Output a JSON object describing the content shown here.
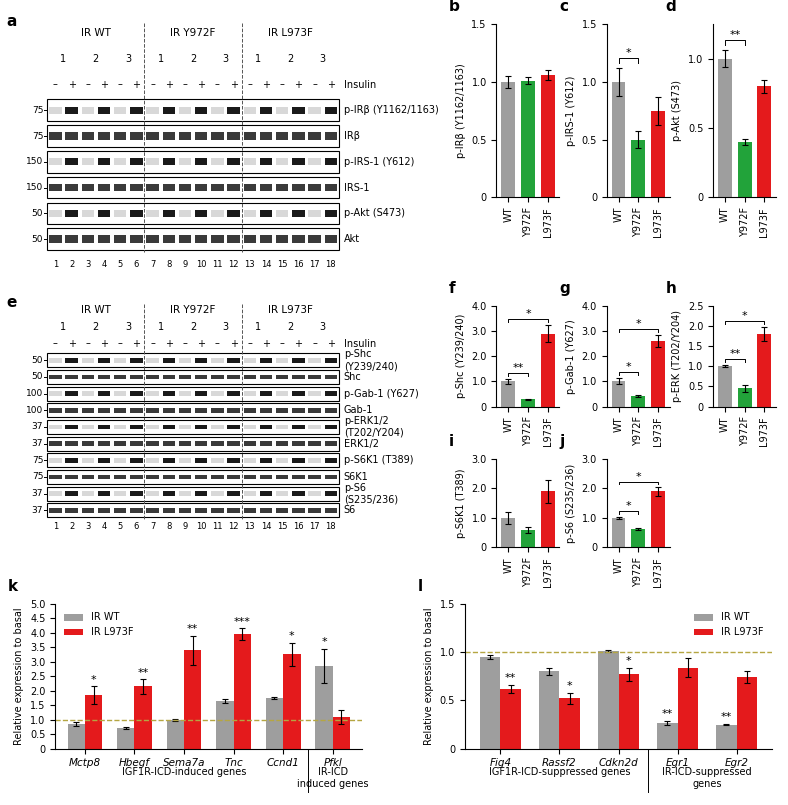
{
  "blots": [
    {
      "panel": "a",
      "groups": [
        "IR WT",
        "IR Y972F",
        "IR L973F"
      ],
      "replicates": [
        "1",
        "2",
        "3"
      ],
      "treatment_label": "Insulin",
      "treatment": [
        "–",
        "+"
      ],
      "lanes": [
        "1",
        "2",
        "3",
        "4",
        "5",
        "6",
        "7",
        "8",
        "9",
        "10",
        "11",
        "12",
        "13",
        "14",
        "15",
        "16",
        "17",
        "18"
      ],
      "rows": [
        {
          "label": "p-IRβ (Y1162/1163)",
          "mw": 75
        },
        {
          "label": "IRβ",
          "mw": 75
        },
        {
          "label": "p-IRS-1 (Y612)",
          "mw": 150
        },
        {
          "label": "IRS-1",
          "mw": 150
        },
        {
          "label": "p-Akt (S473)",
          "mw": 50
        },
        {
          "label": "Akt",
          "mw": 50
        }
      ]
    },
    {
      "panel": "e",
      "groups": [
        "IR WT",
        "IR Y972F",
        "IR L973F"
      ],
      "replicates": [
        "1",
        "2",
        "3"
      ],
      "treatment_label": "Insulin",
      "treatment": [
        "–",
        "+"
      ],
      "lanes": [
        "1",
        "2",
        "3",
        "4",
        "5",
        "6",
        "7",
        "8",
        "9",
        "10",
        "11",
        "12",
        "13",
        "14",
        "15",
        "16",
        "17",
        "18"
      ],
      "rows": [
        {
          "label": "p-Shc\n(Y239/240)",
          "mw": 50
        },
        {
          "label": "Shc",
          "mw": 50
        },
        {
          "label": "p-Gab-1 (Y627)",
          "mw": 100
        },
        {
          "label": "Gab-1",
          "mw": 100
        },
        {
          "label": "p-ERK1/2\n(T202/Y204)",
          "mw": 37
        },
        {
          "label": "ERK1/2",
          "mw": 37
        },
        {
          "label": "p-S6K1 (T389)",
          "mw": 75
        },
        {
          "label": "S6K1",
          "mw": 75
        },
        {
          "label": "p-S6\n(S235/236)",
          "mw": 37
        },
        {
          "label": "S6",
          "mw": 37
        }
      ]
    }
  ],
  "chart_data": [
    {
      "type": "bar",
      "panel": "b",
      "y_label": "p-IRβ (Y1162/1163)",
      "categories": [
        "WT",
        "Y972F",
        "L973F"
      ],
      "values": [
        1.0,
        1.01,
        1.06
      ],
      "errors": [
        0.05,
        0.03,
        0.04
      ],
      "colors": [
        "#9e9e9e",
        "#22a33a",
        "#e41a1c"
      ],
      "ylim": [
        0,
        1.5
      ],
      "yticks": [
        0,
        0.5,
        {
          "value": 1.0,
          "label": "1.0"
        },
        1.5
      ],
      "significance": []
    },
    {
      "type": "bar",
      "panel": "c",
      "y_label": "p-IRS-1 (Y612)",
      "categories": [
        "WT",
        "Y972F",
        "L973F"
      ],
      "values": [
        1.0,
        0.5,
        0.75
      ],
      "errors": [
        0.12,
        0.07,
        0.12
      ],
      "colors": [
        "#9e9e9e",
        "#22a33a",
        "#e41a1c"
      ],
      "ylim": [
        0,
        1.5
      ],
      "yticks": [
        0,
        0.5,
        {
          "value": 1.0,
          "label": "1.0"
        },
        1.5
      ],
      "significance": [
        {
          "from": "WT",
          "to": "Y972F",
          "text": "*"
        }
      ]
    },
    {
      "type": "bar",
      "panel": "d",
      "y_label": "p-Akt (S473)",
      "categories": [
        "WT",
        "Y972F",
        "L973F"
      ],
      "values": [
        1.0,
        0.4,
        0.8
      ],
      "errors": [
        0.06,
        0.02,
        0.05
      ],
      "colors": [
        "#9e9e9e",
        "#22a33a",
        "#e41a1c"
      ],
      "ylim": [
        0,
        1.25
      ],
      "yticks": [
        0,
        0.5,
        {
          "value": 1.0,
          "label": "1.0"
        }
      ],
      "significance": [
        {
          "from": "WT",
          "to": "Y972F",
          "text": "**"
        }
      ]
    },
    {
      "type": "bar",
      "panel": "f",
      "y_label": "p-Shc (Y239/240)",
      "categories": [
        "WT",
        "Y972F",
        "L973F"
      ],
      "values": [
        1.0,
        0.28,
        2.9
      ],
      "errors": [
        0.1,
        0.03,
        0.35
      ],
      "colors": [
        "#9e9e9e",
        "#22a33a",
        "#e41a1c"
      ],
      "ylim": [
        0,
        4.0
      ],
      "yticks": [
        0,
        {
          "value": 1.0,
          "label": "1.0"
        },
        {
          "value": 2.0,
          "label": "2.0"
        },
        {
          "value": 3.0,
          "label": "3.0"
        },
        {
          "value": 4.0,
          "label": "4.0"
        }
      ],
      "significance": [
        {
          "from": "WT",
          "to": "Y972F",
          "text": "**"
        },
        {
          "from": "WT",
          "to": "L973F",
          "text": "*"
        }
      ]
    },
    {
      "type": "bar",
      "panel": "g",
      "y_label": "p-Gab-1 (Y627)",
      "categories": [
        "WT",
        "Y972F",
        "L973F"
      ],
      "values": [
        1.0,
        0.42,
        2.6
      ],
      "errors": [
        0.12,
        0.03,
        0.25
      ],
      "colors": [
        "#9e9e9e",
        "#22a33a",
        "#e41a1c"
      ],
      "ylim": [
        0,
        4.0
      ],
      "yticks": [
        0,
        {
          "value": 1.0,
          "label": "1.0"
        },
        {
          "value": 2.0,
          "label": "2.0"
        },
        {
          "value": 3.0,
          "label": "3.0"
        },
        {
          "value": 4.0,
          "label": "4.0"
        }
      ],
      "significance": [
        {
          "from": "WT",
          "to": "Y972F",
          "text": "*"
        },
        {
          "from": "WT",
          "to": "L973F",
          "text": "*"
        }
      ]
    },
    {
      "type": "bar",
      "panel": "h",
      "y_label": "p-ERK (T202/Y204)",
      "categories": [
        "WT",
        "Y972F",
        "L973F"
      ],
      "values": [
        1.0,
        0.45,
        1.8
      ],
      "errors": [
        0.03,
        0.08,
        0.18
      ],
      "colors": [
        "#9e9e9e",
        "#22a33a",
        "#e41a1c"
      ],
      "ylim": [
        0,
        2.5
      ],
      "yticks": [
        0,
        0.5,
        {
          "value": 1.0,
          "label": "1.0"
        },
        1.5,
        {
          "value": 2.0,
          "label": "2.0"
        },
        2.5
      ],
      "significance": [
        {
          "from": "WT",
          "to": "Y972F",
          "text": "**"
        },
        {
          "from": "WT",
          "to": "L973F",
          "text": "*"
        }
      ]
    },
    {
      "type": "bar",
      "panel": "i",
      "y_label": "p-S6K1 (T389)",
      "categories": [
        "WT",
        "Y972F",
        "L973F"
      ],
      "values": [
        1.0,
        0.6,
        1.9
      ],
      "errors": [
        0.2,
        0.1,
        0.4
      ],
      "colors": [
        "#9e9e9e",
        "#22a33a",
        "#e41a1c"
      ],
      "ylim": [
        0,
        3.0
      ],
      "yticks": [
        0,
        {
          "value": 1.0,
          "label": "1.0"
        },
        {
          "value": 2.0,
          "label": "2.0"
        },
        {
          "value": 3.0,
          "label": "3.0"
        }
      ],
      "significance": []
    },
    {
      "type": "bar",
      "panel": "j",
      "y_label": "p-S6 (S235/236)",
      "categories": [
        "WT",
        "Y972F",
        "L973F"
      ],
      "values": [
        1.0,
        0.62,
        1.9
      ],
      "errors": [
        0.04,
        0.04,
        0.15
      ],
      "colors": [
        "#9e9e9e",
        "#22a33a",
        "#e41a1c"
      ],
      "ylim": [
        0,
        3.0
      ],
      "yticks": [
        0,
        {
          "value": 1.0,
          "label": "1.0"
        },
        {
          "value": 2.0,
          "label": "2.0"
        },
        {
          "value": 3.0,
          "label": "3.0"
        }
      ],
      "significance": [
        {
          "from": "WT",
          "to": "Y972F",
          "text": "*"
        },
        {
          "from": "WT",
          "to": "L973F",
          "text": "*"
        }
      ]
    },
    {
      "type": "bar",
      "panel": "k",
      "y_label": "Relative expression to basal",
      "categories": [
        "Mctp8",
        "Hbegf",
        "Sema7a",
        "Tnc",
        "Ccnd1",
        "Pfkl"
      ],
      "series": [
        {
          "name": "IR WT",
          "color": "#9e9e9e",
          "values": [
            0.85,
            0.7,
            0.98,
            1.65,
            1.75,
            2.85
          ],
          "errors": [
            0.07,
            0.03,
            0.03,
            0.07,
            0.03,
            0.6
          ]
        },
        {
          "name": "IR L973F",
          "color": "#e41a1c",
          "values": [
            1.85,
            2.15,
            3.4,
            3.95,
            3.25,
            1.1
          ],
          "errors": [
            0.3,
            0.25,
            0.5,
            0.2,
            0.4,
            0.25
          ]
        }
      ],
      "ylim": [
        0,
        5.0
      ],
      "yticks": [
        0,
        0.5,
        {
          "value": 1.0,
          "label": "1.0"
        },
        1.5,
        {
          "value": 2.0,
          "label": "2.0"
        },
        2.5,
        {
          "value": 3.0,
          "label": "3.0"
        },
        3.5,
        {
          "value": 4.0,
          "label": "4.0"
        },
        4.5,
        {
          "value": 5.0,
          "label": "5.0"
        }
      ],
      "reference_line": 1,
      "legend": "upper left",
      "stars": [
        {
          "category": "Mctp8",
          "series": "IR L973F",
          "text": "*"
        },
        {
          "category": "Hbegf",
          "series": "IR L973F",
          "text": "**"
        },
        {
          "category": "Sema7a",
          "series": "IR L973F",
          "text": "**"
        },
        {
          "category": "Tnc",
          "series": "IR L973F",
          "text": "***"
        },
        {
          "category": "Ccnd1",
          "series": "IR L973F",
          "text": "*"
        },
        {
          "category": "Pfkl",
          "series": "IR WT",
          "text": "*"
        }
      ],
      "groups": [
        {
          "label": "IGF1R-ICD-induced genes",
          "categories": [
            "Mctp8",
            "Hbegf",
            "Sema7a",
            "Tnc",
            "Ccnd1"
          ]
        },
        {
          "label": "IR-ICD\ninduced genes",
          "categories": [
            "Pfkl"
          ]
        }
      ]
    },
    {
      "type": "bar",
      "panel": "l",
      "y_label": "Relative expression to basal",
      "categories": [
        "Fig4",
        "Rassf2",
        "Cdkn2d",
        "Egr1",
        "Egr2"
      ],
      "series": [
        {
          "name": "IR WT",
          "color": "#9e9e9e",
          "values": [
            0.95,
            0.8,
            1.01,
            0.27,
            0.25
          ],
          "errors": [
            0.02,
            0.04,
            0.01,
            0.02,
            0.01
          ]
        },
        {
          "name": "IR L973F",
          "color": "#e41a1c",
          "values": [
            0.62,
            0.52,
            0.77,
            0.84,
            0.74
          ],
          "errors": [
            0.04,
            0.06,
            0.07,
            0.1,
            0.06
          ]
        }
      ],
      "ylim": [
        0,
        1.5
      ],
      "yticks": [
        0,
        0.5,
        {
          "value": 1.0,
          "label": "1.0"
        },
        1.5
      ],
      "reference_line": 1,
      "legend": "upper right",
      "stars": [
        {
          "category": "Fig4",
          "series": "IR L973F",
          "text": "**"
        },
        {
          "category": "Rassf2",
          "series": "IR L973F",
          "text": "*"
        },
        {
          "category": "Cdkn2d",
          "series": "IR L973F",
          "text": "*"
        },
        {
          "category": "Egr1",
          "series": "IR WT",
          "text": "**"
        },
        {
          "category": "Egr2",
          "series": "IR WT",
          "text": "**"
        }
      ],
      "groups": [
        {
          "label": "IGF1R-ICD-suppressed genes",
          "categories": [
            "Fig4",
            "Rassf2",
            "Cdkn2d"
          ]
        },
        {
          "label": "IR-ICD-suppressed\ngenes",
          "categories": [
            "Egr1",
            "Egr2"
          ]
        }
      ]
    }
  ]
}
